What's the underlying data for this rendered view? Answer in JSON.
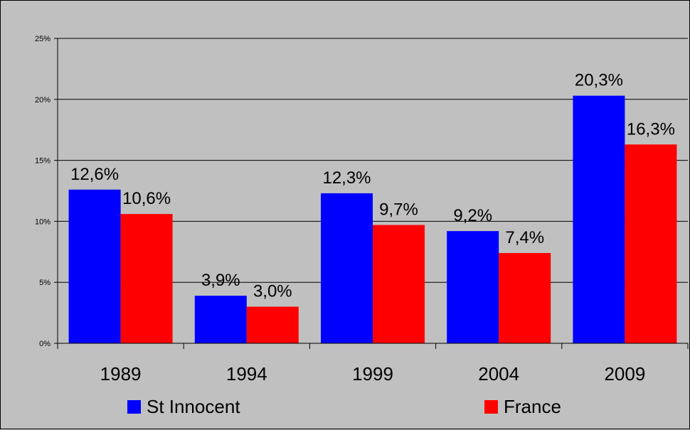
{
  "chart_data": {
    "type": "bar",
    "categories": [
      "1989",
      "1994",
      "1999",
      "2004",
      "2009"
    ],
    "series": [
      {
        "name": "St Innocent",
        "color": "#0000ff",
        "values": [
          12.6,
          3.9,
          12.3,
          9.2,
          20.3
        ],
        "labels": [
          "12,6%",
          "3,9%",
          "12,3%",
          "9,2%",
          "20,3%"
        ]
      },
      {
        "name": "France",
        "color": "#ff0000",
        "values": [
          10.6,
          3.0,
          9.7,
          7.4,
          16.3
        ],
        "labels": [
          "10,6%",
          "3,0%",
          "9,7%",
          "7,4%",
          "16,3%"
        ]
      }
    ],
    "yticks": [
      "0%",
      "5%",
      "10%",
      "15%",
      "20%",
      "25%"
    ],
    "ylim": [
      0,
      25
    ],
    "grid": true,
    "legend": "bottom",
    "background": "#c0c0c0"
  }
}
